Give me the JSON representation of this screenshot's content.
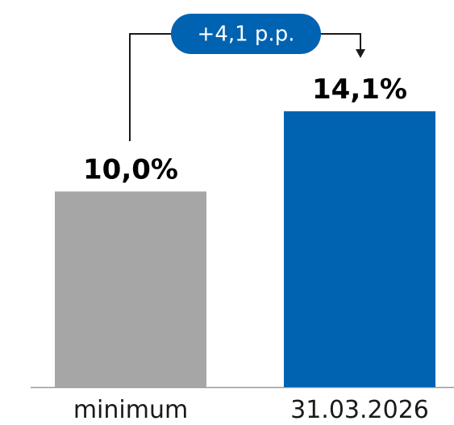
{
  "chart_data": {
    "type": "bar",
    "categories": [
      "minimum",
      "31.03.2026"
    ],
    "values": [
      10.0,
      14.1
    ],
    "value_labels": [
      "10,0%",
      "14,1%"
    ],
    "colors": [
      "#a6a6a6",
      "#0063b1"
    ],
    "ylim": [
      0,
      14.1
    ],
    "grid": false,
    "annotation": {
      "label": "+4,1 p.p.",
      "from_category": "minimum",
      "to_category": "31.03.2026",
      "color": "#0063b1"
    }
  }
}
